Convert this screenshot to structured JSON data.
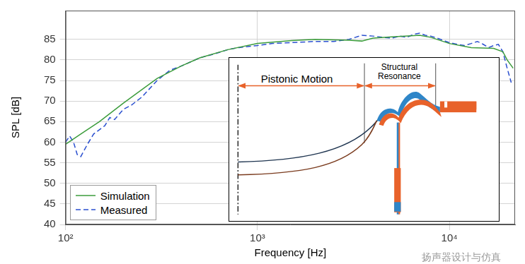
{
  "chart_data": {
    "type": "line",
    "xlabel": "Frequency [Hz]",
    "ylabel": "SPL [dB]",
    "log": "x",
    "grid": true,
    "legend": "lower left",
    "xlim": [
      100,
      22000
    ],
    "xticks": [
      {
        "value": 100,
        "label": "10²"
      },
      {
        "value": 1000,
        "label": "10³"
      },
      {
        "value": 10000,
        "label": "10⁴"
      }
    ],
    "ylim": [
      40,
      92
    ],
    "yticks": [
      40,
      45,
      50,
      55,
      60,
      65,
      70,
      75,
      80,
      85
    ],
    "series": [
      {
        "name": "Simulation",
        "color": "#3c9c3c",
        "line_style": "solid",
        "marker": "none",
        "x": [
          100,
          120,
          150,
          200,
          300,
          400,
          500,
          700,
          1000,
          1500,
          2000,
          3000,
          3500,
          4000,
          5000,
          7000,
          8000,
          10000,
          13000,
          17000,
          19000,
          20000,
          21500
        ],
        "values": [
          59.5,
          62,
          65,
          69.5,
          75.5,
          78.5,
          80.5,
          82.5,
          84,
          84.7,
          85,
          84.8,
          84.6,
          85.3,
          85.6,
          86,
          85.5,
          84,
          83,
          82.8,
          82,
          80,
          78
        ]
      },
      {
        "name": "Measured",
        "color": "#2a4fcf",
        "line_style": "dashed",
        "marker": "none",
        "x": [
          100,
          105,
          110,
          115,
          120,
          130,
          140,
          160,
          170,
          180,
          200,
          220,
          250,
          300,
          350,
          400,
          500,
          600,
          700,
          800,
          1000,
          1200,
          1500,
          2000,
          2500,
          3000,
          3500,
          4000,
          4500,
          5000,
          5500,
          6000,
          6500,
          7000,
          7500,
          8000,
          9000,
          10000,
          11000,
          12000,
          13000,
          14000,
          15000,
          16000,
          17000,
          18000,
          19000,
          20000,
          21000
        ],
        "values": [
          60,
          61.5,
          60,
          57,
          56.5,
          59.5,
          62,
          64,
          66,
          65.5,
          68,
          69,
          71,
          75,
          77.5,
          78.5,
          80.5,
          81.5,
          82.5,
          83,
          83.5,
          84,
          84.2,
          84.5,
          84.5,
          85,
          86,
          85.8,
          85.5,
          85.3,
          85.8,
          85.5,
          86.2,
          86.5,
          86,
          85.8,
          85,
          84.2,
          83.8,
          83.5,
          84,
          84.5,
          83.8,
          83,
          83.5,
          83.8,
          82,
          78,
          74.5
        ]
      }
    ],
    "annotations": [
      {
        "text": "Pistonic Motion"
      },
      {
        "text": "Structural Resonance"
      },
      {
        "text": "扬声器设计与仿真"
      }
    ]
  }
}
